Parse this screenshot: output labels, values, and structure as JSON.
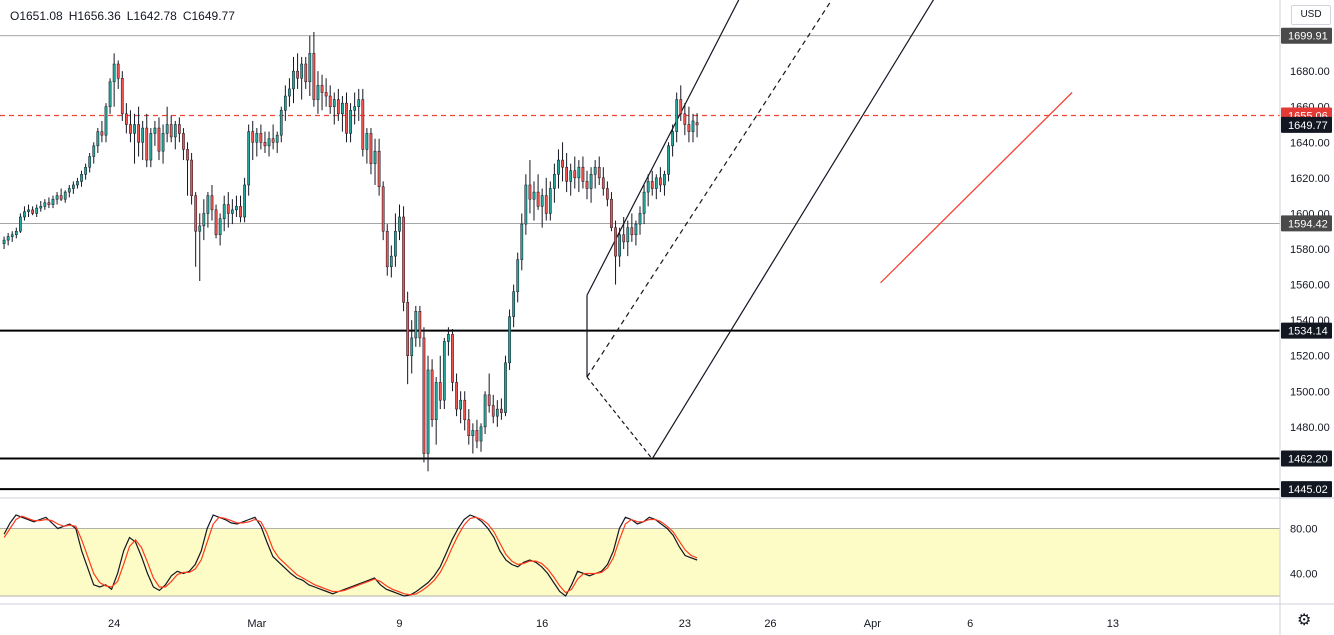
{
  "ohlc": {
    "open": "O1651.08",
    "high": "H1656.36",
    "low": "L1642.78",
    "close": "C1649.77"
  },
  "currency": "USD",
  "settings_icon": "gear-icon",
  "colors": {
    "up": "#26a69a",
    "down": "#ef5350",
    "wick": "#131722",
    "bgband": "#fdfcc6",
    "k": "#131722",
    "d": "#ff3b1f",
    "red_line": "#f44336"
  },
  "chart_data": {
    "type": "candlestick",
    "title": "",
    "price_ylim": [
      1440,
      1720
    ],
    "price_ticks": [
      "1440.00",
      "1460.00",
      "1480.00",
      "1500.00",
      "1520.00",
      "1540.00",
      "1560.00",
      "1580.00",
      "1600.00",
      "1620.00",
      "1640.00",
      "1660.00",
      "1680.00"
    ],
    "date_ticks": [
      {
        "label": "24",
        "i": 27
      },
      {
        "label": "Mar",
        "i": 62
      },
      {
        "label": "9",
        "i": 97
      },
      {
        "label": "16",
        "i": 132
      },
      {
        "label": "23",
        "i": 167
      },
      {
        "label": "26",
        "i": 188
      },
      {
        "label": "Apr",
        "i": 213
      },
      {
        "label": "6",
        "i": 237
      },
      {
        "label": "13",
        "i": 272
      }
    ],
    "x_index_range": [
      -1,
      313
    ],
    "price_labels": [
      {
        "text": "1699.91",
        "value": 1699.91,
        "style": "gray"
      },
      {
        "text": "1655.06",
        "value": 1655.06,
        "style": "red"
      },
      {
        "text": "1649.77",
        "value": 1649.77,
        "style": "black"
      },
      {
        "text": "1594.42",
        "value": 1594.42,
        "style": "gray"
      },
      {
        "text": "1534.14",
        "value": 1534.14,
        "style": "dark"
      },
      {
        "text": "1462.20",
        "value": 1462.2,
        "style": "dark"
      },
      {
        "text": "1445.02",
        "value": 1445.02,
        "style": "dark"
      }
    ],
    "horizontal_lines": [
      {
        "value": 1699.91,
        "style": "thin"
      },
      {
        "value": 1594.42,
        "style": "thin"
      },
      {
        "value": 1534.14,
        "style": "thick"
      },
      {
        "value": 1462.2,
        "style": "thick"
      },
      {
        "value": 1445.02,
        "style": "thick"
      },
      {
        "value": 1655.06,
        "style": "red-dashed"
      }
    ],
    "channel": {
      "upper": [
        [
          143,
          1554
        ],
        [
          195,
          1786
        ]
      ],
      "median": [
        [
          143,
          1508
        ],
        [
          220,
          1780
        ]
      ],
      "lower": [
        [
          159,
          1462
        ],
        [
          244,
          1780
        ]
      ]
    },
    "trendline": [
      [
        215,
        1561
      ],
      [
        262,
        1668
      ]
    ],
    "candles": [
      [
        1583,
        1587,
        1580,
        1585
      ],
      [
        1585,
        1589,
        1582,
        1587
      ],
      [
        1587,
        1590,
        1584,
        1588
      ],
      [
        1588,
        1592,
        1586,
        1590
      ],
      [
        1590,
        1600,
        1589,
        1598
      ],
      [
        1598,
        1604,
        1596,
        1601
      ],
      [
        1601,
        1605,
        1598,
        1602
      ],
      [
        1602,
        1604,
        1599,
        1600
      ],
      [
        1600,
        1605,
        1598,
        1603
      ],
      [
        1603,
        1607,
        1601,
        1604
      ],
      [
        1604,
        1608,
        1602,
        1606
      ],
      [
        1606,
        1609,
        1603,
        1605
      ],
      [
        1605,
        1610,
        1603,
        1608
      ],
      [
        1608,
        1612,
        1605,
        1610
      ],
      [
        1610,
        1614,
        1607,
        1608
      ],
      [
        1608,
        1613,
        1606,
        1612
      ],
      [
        1612,
        1616,
        1609,
        1614
      ],
      [
        1614,
        1618,
        1611,
        1616
      ],
      [
        1616,
        1620,
        1614,
        1618
      ],
      [
        1618,
        1624,
        1615,
        1622
      ],
      [
        1622,
        1628,
        1619,
        1626
      ],
      [
        1626,
        1634,
        1623,
        1632
      ],
      [
        1632,
        1640,
        1628,
        1638
      ],
      [
        1638,
        1648,
        1634,
        1646
      ],
      [
        1646,
        1652,
        1640,
        1644
      ],
      [
        1644,
        1662,
        1640,
        1660
      ],
      [
        1660,
        1676,
        1656,
        1674
      ],
      [
        1674,
        1690,
        1660,
        1684
      ],
      [
        1684,
        1686,
        1670,
        1676
      ],
      [
        1676,
        1680,
        1652,
        1656
      ],
      [
        1656,
        1662,
        1645,
        1650
      ],
      [
        1650,
        1658,
        1640,
        1645
      ],
      [
        1645,
        1656,
        1628,
        1650
      ],
      [
        1650,
        1660,
        1632,
        1640
      ],
      [
        1640,
        1652,
        1630,
        1648
      ],
      [
        1648,
        1656,
        1626,
        1630
      ],
      [
        1630,
        1648,
        1626,
        1645
      ],
      [
        1645,
        1652,
        1638,
        1648
      ],
      [
        1648,
        1654,
        1630,
        1635
      ],
      [
        1635,
        1650,
        1628,
        1645
      ],
      [
        1645,
        1660,
        1640,
        1650
      ],
      [
        1650,
        1655,
        1640,
        1643
      ],
      [
        1643,
        1652,
        1636,
        1650
      ],
      [
        1650,
        1654,
        1640,
        1645
      ],
      [
        1645,
        1648,
        1630,
        1636
      ],
      [
        1636,
        1640,
        1610,
        1630
      ],
      [
        1630,
        1634,
        1605,
        1610
      ],
      [
        1610,
        1612,
        1570,
        1590
      ],
      [
        1590,
        1600,
        1562,
        1593
      ],
      [
        1593,
        1608,
        1585,
        1600
      ],
      [
        1600,
        1612,
        1592,
        1610
      ],
      [
        1610,
        1616,
        1596,
        1602
      ],
      [
        1602,
        1605,
        1586,
        1588
      ],
      [
        1588,
        1600,
        1582,
        1597
      ],
      [
        1597,
        1610,
        1590,
        1605
      ],
      [
        1605,
        1612,
        1592,
        1600
      ],
      [
        1600,
        1608,
        1594,
        1602
      ],
      [
        1602,
        1610,
        1598,
        1604
      ],
      [
        1604,
        1610,
        1595,
        1598
      ],
      [
        1598,
        1620,
        1595,
        1616
      ],
      [
        1616,
        1650,
        1610,
        1646
      ],
      [
        1646,
        1652,
        1630,
        1640
      ],
      [
        1640,
        1648,
        1632,
        1645
      ],
      [
        1645,
        1650,
        1636,
        1640
      ],
      [
        1640,
        1646,
        1634,
        1638
      ],
      [
        1638,
        1646,
        1632,
        1642
      ],
      [
        1642,
        1650,
        1636,
        1640
      ],
      [
        1640,
        1646,
        1634,
        1644
      ],
      [
        1644,
        1660,
        1640,
        1658
      ],
      [
        1658,
        1672,
        1652,
        1666
      ],
      [
        1666,
        1676,
        1660,
        1670
      ],
      [
        1670,
        1688,
        1662,
        1680
      ],
      [
        1680,
        1690,
        1670,
        1676
      ],
      [
        1676,
        1688,
        1664,
        1684
      ],
      [
        1684,
        1688,
        1670,
        1674
      ],
      [
        1674,
        1700,
        1666,
        1690
      ],
      [
        1690,
        1702,
        1660,
        1664
      ],
      [
        1664,
        1680,
        1656,
        1672
      ],
      [
        1672,
        1678,
        1658,
        1668
      ],
      [
        1668,
        1676,
        1660,
        1666
      ],
      [
        1666,
        1672,
        1656,
        1660
      ],
      [
        1660,
        1668,
        1650,
        1664
      ],
      [
        1664,
        1670,
        1652,
        1656
      ],
      [
        1656,
        1666,
        1646,
        1662
      ],
      [
        1662,
        1668,
        1640,
        1645
      ],
      [
        1645,
        1662,
        1640,
        1658
      ],
      [
        1658,
        1668,
        1650,
        1660
      ],
      [
        1660,
        1670,
        1652,
        1664
      ],
      [
        1664,
        1670,
        1632,
        1636
      ],
      [
        1636,
        1648,
        1628,
        1645
      ],
      [
        1645,
        1648,
        1622,
        1628
      ],
      [
        1628,
        1642,
        1616,
        1635
      ],
      [
        1635,
        1642,
        1610,
        1615
      ],
      [
        1615,
        1618,
        1585,
        1590
      ],
      [
        1590,
        1594,
        1565,
        1570
      ],
      [
        1570,
        1582,
        1564,
        1576
      ],
      [
        1576,
        1600,
        1570,
        1590
      ],
      [
        1590,
        1605,
        1585,
        1598
      ],
      [
        1598,
        1604,
        1545,
        1550
      ],
      [
        1550,
        1556,
        1504,
        1520
      ],
      [
        1520,
        1540,
        1510,
        1530
      ],
      [
        1530,
        1548,
        1525,
        1545
      ],
      [
        1545,
        1548,
        1525,
        1530
      ],
      [
        1530,
        1536,
        1460,
        1465
      ],
      [
        1465,
        1520,
        1455,
        1512
      ],
      [
        1512,
        1518,
        1480,
        1484
      ],
      [
        1484,
        1508,
        1470,
        1505
      ],
      [
        1505,
        1520,
        1490,
        1495
      ],
      [
        1495,
        1530,
        1490,
        1528
      ],
      [
        1528,
        1536,
        1520,
        1532
      ],
      [
        1532,
        1535,
        1500,
        1505
      ],
      [
        1505,
        1510,
        1486,
        1490
      ],
      [
        1490,
        1500,
        1482,
        1495
      ],
      [
        1495,
        1500,
        1478,
        1484
      ],
      [
        1484,
        1490,
        1470,
        1475
      ],
      [
        1475,
        1482,
        1465,
        1478
      ],
      [
        1478,
        1484,
        1468,
        1472
      ],
      [
        1472,
        1482,
        1466,
        1480
      ],
      [
        1480,
        1500,
        1476,
        1498
      ],
      [
        1498,
        1510,
        1488,
        1492
      ],
      [
        1492,
        1498,
        1482,
        1486
      ],
      [
        1486,
        1495,
        1480,
        1490
      ],
      [
        1490,
        1496,
        1484,
        1488
      ],
      [
        1488,
        1520,
        1486,
        1516
      ],
      [
        1516,
        1546,
        1512,
        1542
      ],
      [
        1542,
        1560,
        1536,
        1556
      ],
      [
        1556,
        1578,
        1550,
        1574
      ],
      [
        1574,
        1600,
        1568,
        1594
      ],
      [
        1594,
        1622,
        1588,
        1616
      ],
      [
        1616,
        1630,
        1600,
        1608
      ],
      [
        1608,
        1618,
        1596,
        1612
      ],
      [
        1612,
        1622,
        1602,
        1604
      ],
      [
        1604,
        1614,
        1592,
        1610
      ],
      [
        1610,
        1620,
        1596,
        1600
      ],
      [
        1600,
        1618,
        1596,
        1614
      ],
      [
        1614,
        1628,
        1606,
        1622
      ],
      [
        1622,
        1636,
        1614,
        1630
      ],
      [
        1630,
        1640,
        1618,
        1626
      ],
      [
        1626,
        1634,
        1612,
        1618
      ],
      [
        1618,
        1628,
        1610,
        1624
      ],
      [
        1624,
        1632,
        1614,
        1620
      ],
      [
        1620,
        1630,
        1612,
        1626
      ],
      [
        1626,
        1632,
        1614,
        1618
      ],
      [
        1618,
        1624,
        1608,
        1614
      ],
      [
        1614,
        1626,
        1606,
        1622
      ],
      [
        1622,
        1630,
        1614,
        1626
      ],
      [
        1626,
        1632,
        1616,
        1620
      ],
      [
        1620,
        1626,
        1610,
        1614
      ],
      [
        1614,
        1618,
        1604,
        1608
      ],
      [
        1608,
        1612,
        1590,
        1592
      ],
      [
        1592,
        1596,
        1560,
        1576
      ],
      [
        1576,
        1592,
        1570,
        1588
      ],
      [
        1588,
        1598,
        1580,
        1584
      ],
      [
        1584,
        1596,
        1576,
        1592
      ],
      [
        1592,
        1600,
        1584,
        1588
      ],
      [
        1588,
        1596,
        1582,
        1594
      ],
      [
        1594,
        1604,
        1588,
        1600
      ],
      [
        1600,
        1616,
        1594,
        1612
      ],
      [
        1612,
        1622,
        1604,
        1618
      ],
      [
        1618,
        1624,
        1610,
        1614
      ],
      [
        1614,
        1622,
        1608,
        1620
      ],
      [
        1620,
        1626,
        1612,
        1616
      ],
      [
        1616,
        1624,
        1610,
        1622
      ],
      [
        1622,
        1640,
        1618,
        1638
      ],
      [
        1638,
        1650,
        1632,
        1646
      ],
      [
        1646,
        1668,
        1640,
        1664
      ],
      [
        1664,
        1672,
        1652,
        1656
      ],
      [
        1656,
        1662,
        1644,
        1650
      ],
      [
        1650,
        1660,
        1640,
        1646
      ],
      [
        1646,
        1656,
        1640,
        1652
      ],
      [
        1651.08,
        1656.36,
        1642.78,
        1649.77
      ]
    ],
    "oscillator": {
      "ylim": [
        20,
        100
      ],
      "ticks": [
        "40.00",
        "80.00"
      ],
      "band": [
        20,
        80
      ],
      "series": [
        {
          "key": "k",
          "values": [
            75,
            85,
            92,
            90,
            88,
            86,
            88,
            90,
            85,
            80,
            82,
            84,
            80,
            60,
            45,
            30,
            28,
            30,
            26,
            40,
            60,
            72,
            68,
            55,
            40,
            28,
            25,
            30,
            38,
            42,
            40,
            42,
            48,
            60,
            80,
            92,
            90,
            88,
            85,
            84,
            86,
            88,
            90,
            82,
            68,
            55,
            50,
            45,
            40,
            36,
            34,
            30,
            28,
            26,
            24,
            22,
            24,
            26,
            28,
            30,
            32,
            34,
            36,
            30,
            26,
            24,
            22,
            20,
            21,
            24,
            28,
            32,
            38,
            46,
            58,
            70,
            80,
            88,
            92,
            90,
            86,
            80,
            72,
            60,
            52,
            48,
            46,
            50,
            52,
            50,
            46,
            40,
            32,
            24,
            20,
            30,
            42,
            40,
            38,
            40,
            42,
            48,
            60,
            80,
            90,
            88,
            84,
            86,
            90,
            88,
            84,
            80,
            74,
            64,
            56,
            54,
            52
          ]
        },
        {
          "key": "d",
          "values": [
            72,
            80,
            88,
            91,
            89,
            87,
            87,
            88,
            87,
            84,
            82,
            83,
            82,
            70,
            55,
            40,
            32,
            29,
            28,
            33,
            48,
            64,
            70,
            63,
            50,
            36,
            28,
            28,
            33,
            39,
            41,
            41,
            44,
            52,
            68,
            84,
            90,
            89,
            87,
            85,
            85,
            86,
            88,
            86,
            76,
            62,
            54,
            49,
            44,
            39,
            36,
            33,
            30,
            28,
            26,
            24,
            24,
            25,
            27,
            29,
            31,
            33,
            35,
            33,
            29,
            26,
            24,
            22,
            21,
            22,
            25,
            29,
            34,
            41,
            51,
            63,
            74,
            83,
            89,
            90,
            88,
            84,
            77,
            67,
            57,
            51,
            48,
            49,
            51,
            51,
            49,
            44,
            37,
            29,
            23,
            26,
            35,
            40,
            40,
            40,
            41,
            45,
            54,
            70,
            84,
            88,
            86,
            86,
            88,
            88,
            86,
            82,
            77,
            69,
            61,
            56,
            54
          ]
        }
      ]
    }
  }
}
